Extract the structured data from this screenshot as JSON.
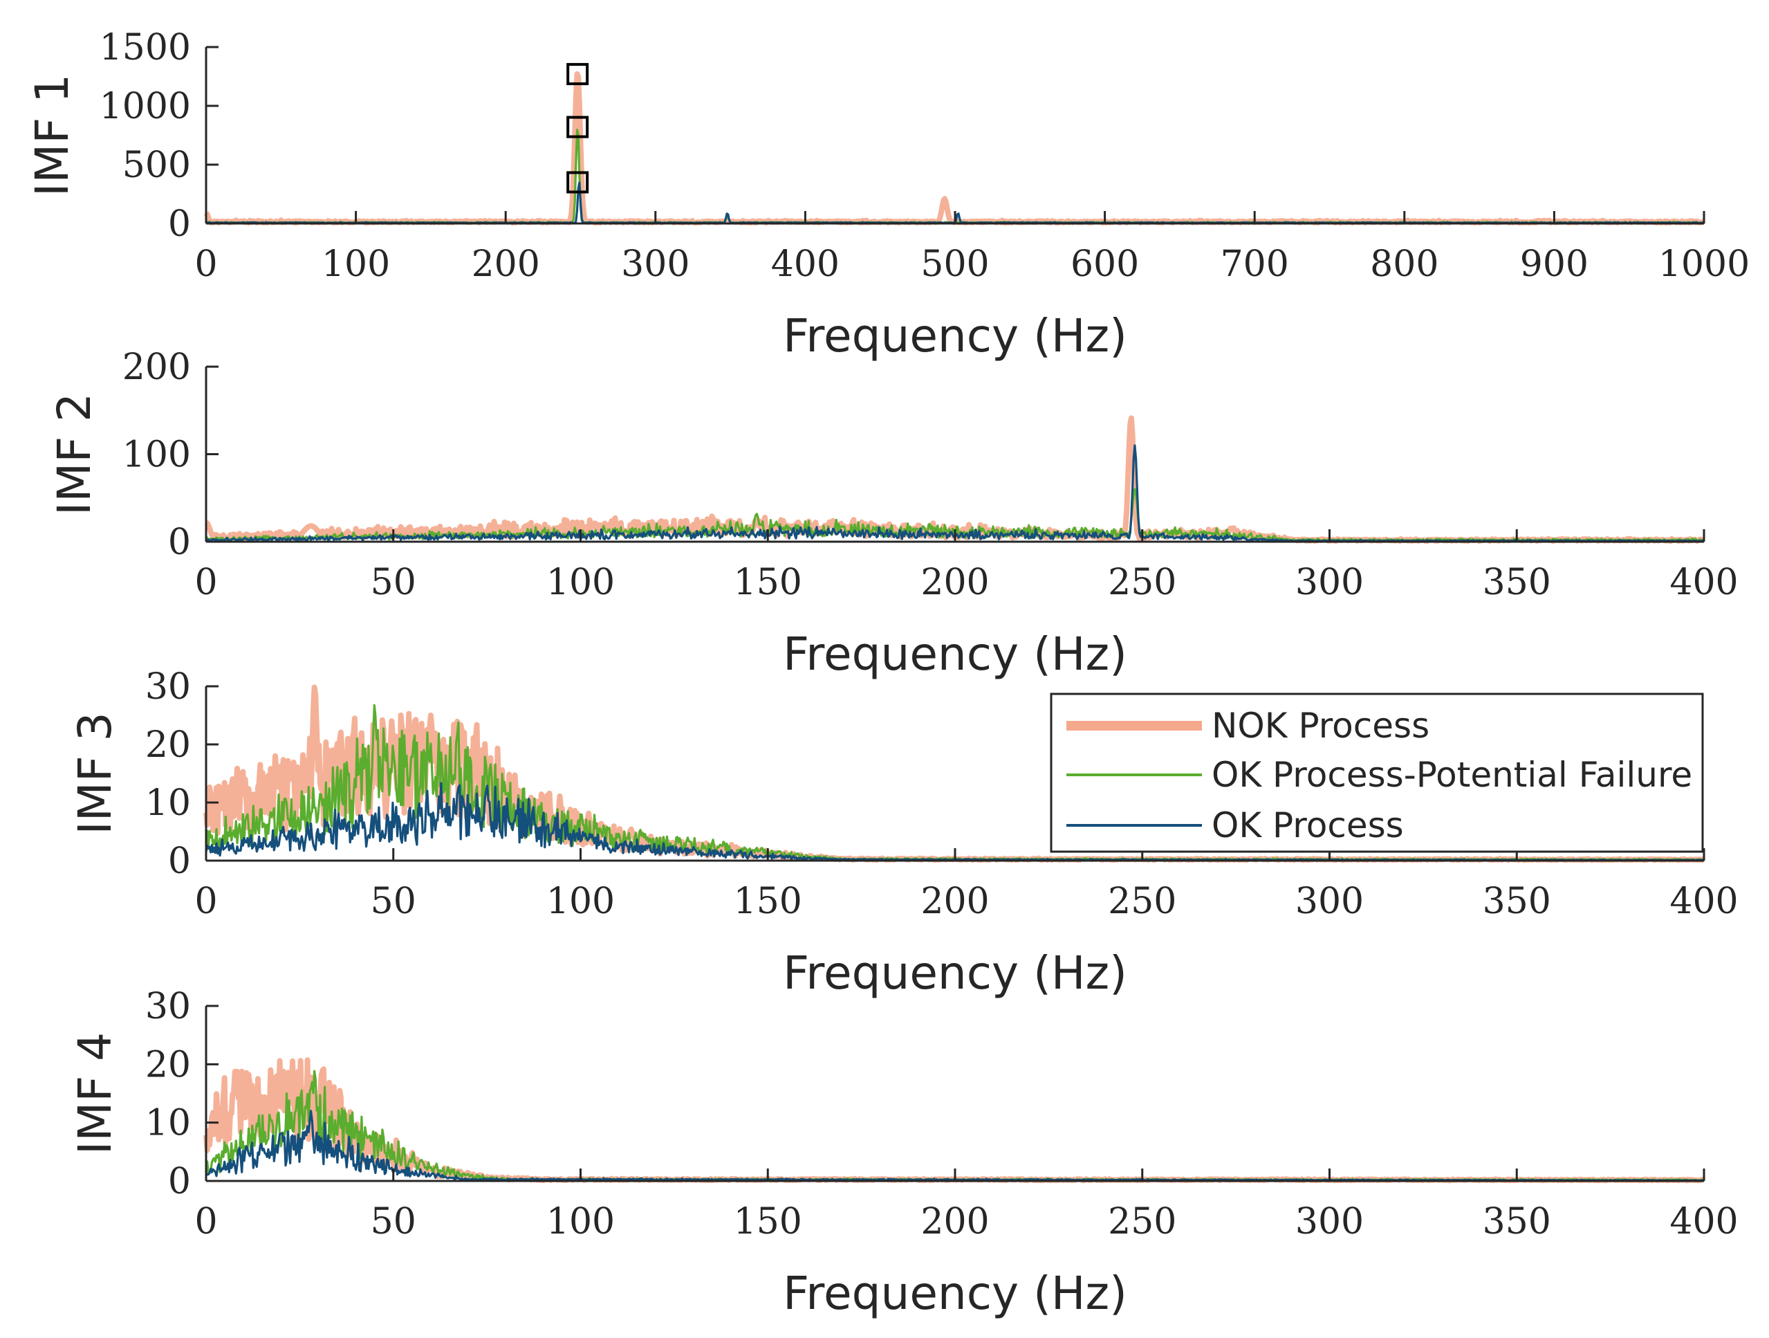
{
  "chart_data": [
    {
      "type": "line",
      "panel": "IMF 1",
      "ylabel": "IMF 1",
      "xlabel": "Frequency (Hz)",
      "xlim": [
        0,
        1000
      ],
      "ylim": [
        0,
        1500
      ],
      "xticks": [
        0,
        100,
        200,
        300,
        400,
        500,
        600,
        700,
        800,
        900,
        1000
      ],
      "yticks": [
        0,
        500,
        1000,
        1500
      ],
      "markers": [
        {
          "x": 248,
          "y": 1270,
          "symbol": "square"
        },
        {
          "x": 248,
          "y": 820,
          "symbol": "square"
        },
        {
          "x": 248,
          "y": 350,
          "symbol": "square"
        }
      ],
      "series": [
        {
          "name": "NOK Process",
          "color": "#f4a98c",
          "floor": 15,
          "noise": 10,
          "peaks": [
            {
              "x": 248,
              "y": 1290,
              "w": 2.5
            },
            {
              "x": 493,
              "y": 210,
              "w": 2.5
            },
            {
              "x": 0,
              "y": 90,
              "w": 2
            }
          ]
        },
        {
          "name": "OK Process-Potential Failure",
          "color": "#5aad2e",
          "floor": 8,
          "noise": 6,
          "peaks": [
            {
              "x": 248,
              "y": 830,
              "w": 1.5
            },
            {
              "x": 348,
              "y": 60,
              "w": 1.5
            }
          ]
        },
        {
          "name": "OK Process",
          "color": "#154f7c",
          "floor": 6,
          "noise": 5,
          "peaks": [
            {
              "x": 249,
              "y": 360,
              "w": 1.2
            },
            {
              "x": 348,
              "y": 90,
              "w": 1.2
            },
            {
              "x": 502,
              "y": 90,
              "w": 1.2
            }
          ]
        }
      ]
    },
    {
      "type": "line",
      "panel": "IMF 2",
      "ylabel": "IMF 2",
      "xlabel": "Frequency (Hz)",
      "xlim": [
        0,
        400
      ],
      "ylim": [
        0,
        200
      ],
      "xticks": [
        0,
        50,
        100,
        150,
        200,
        250,
        300,
        350,
        400
      ],
      "yticks": [
        0,
        100,
        200
      ],
      "series": [
        {
          "name": "NOK Process",
          "color": "#f4a98c",
          "envelope": [
            [
              0,
              6
            ],
            [
              100,
              16
            ],
            [
              150,
              18
            ],
            [
              200,
              12
            ],
            [
              240,
              8
            ],
            [
              275,
              10
            ],
            [
              290,
              2
            ],
            [
              400,
              2
            ]
          ],
          "noise": 12,
          "peaks": [
            {
              "x": 247,
              "y": 142,
              "w": 1
            },
            {
              "x": 0,
              "y": 22,
              "w": 1.5
            },
            {
              "x": 28,
              "y": 18,
              "w": 3
            },
            {
              "x": 274,
              "y": 14,
              "w": 1.5
            }
          ]
        },
        {
          "name": "OK Process-Potential Failure",
          "color": "#5aad2e",
          "envelope": [
            [
              0,
              3
            ],
            [
              100,
              10
            ],
            [
              150,
              16
            ],
            [
              200,
              12
            ],
            [
              240,
              10
            ],
            [
              270,
              9
            ],
            [
              290,
              2
            ],
            [
              400,
              2
            ]
          ],
          "noise": 12,
          "peaks": [
            {
              "x": 147,
              "y": 32,
              "w": 1
            },
            {
              "x": 248,
              "y": 60,
              "w": 1
            }
          ]
        },
        {
          "name": "OK Process",
          "color": "#154f7c",
          "envelope": [
            [
              0,
              2
            ],
            [
              100,
              7
            ],
            [
              150,
              10
            ],
            [
              200,
              8
            ],
            [
              240,
              7
            ],
            [
              270,
              5
            ],
            [
              290,
              1
            ],
            [
              400,
              1
            ]
          ],
          "noise": 8,
          "peaks": [
            {
              "x": 248,
              "y": 110,
              "w": 0.8
            }
          ]
        }
      ]
    },
    {
      "type": "line",
      "panel": "IMF 3",
      "ylabel": "IMF 3",
      "xlabel": "Frequency (Hz)",
      "xlim": [
        0,
        400
      ],
      "ylim": [
        0,
        30
      ],
      "xticks": [
        0,
        50,
        100,
        150,
        200,
        250,
        300,
        350,
        400
      ],
      "yticks": [
        0,
        10,
        20,
        30
      ],
      "legend_position": "right",
      "series": [
        {
          "name": "NOK Process",
          "color": "#f4a98c",
          "envelope": [
            [
              0,
              9
            ],
            [
              30,
              16
            ],
            [
              50,
              19
            ],
            [
              70,
              19
            ],
            [
              80,
              12
            ],
            [
              100,
              6
            ],
            [
              120,
              3
            ],
            [
              150,
              1.2
            ],
            [
              170,
              0.3
            ],
            [
              400,
              0.2
            ]
          ],
          "noise": 7,
          "peaks": [
            {
              "x": 29,
              "y": 30,
              "w": 1
            },
            {
              "x": 60,
              "y": 25,
              "w": 1
            },
            {
              "x": 72,
              "y": 21,
              "w": 1
            }
          ]
        },
        {
          "name": "OK Process-Potential Failure",
          "color": "#5aad2e",
          "envelope": [
            [
              0,
              4
            ],
            [
              30,
              10
            ],
            [
              45,
              17
            ],
            [
              60,
              17
            ],
            [
              75,
              14
            ],
            [
              90,
              8
            ],
            [
              110,
              4
            ],
            [
              130,
              3
            ],
            [
              150,
              1.5
            ],
            [
              170,
              0.3
            ],
            [
              400,
              0.2
            ]
          ],
          "noise": 7,
          "peaks": [
            {
              "x": 45,
              "y": 27,
              "w": 0.8
            },
            {
              "x": 67,
              "y": 22,
              "w": 0.8
            }
          ]
        },
        {
          "name": "OK Process",
          "color": "#154f7c",
          "envelope": [
            [
              0,
              2
            ],
            [
              30,
              5
            ],
            [
              50,
              7
            ],
            [
              70,
              9
            ],
            [
              85,
              7
            ],
            [
              100,
              4
            ],
            [
              120,
              2
            ],
            [
              150,
              0.8
            ],
            [
              170,
              0.2
            ],
            [
              400,
              0.1
            ]
          ],
          "noise": 5,
          "peaks": [
            {
              "x": 75,
              "y": 13,
              "w": 0.8
            }
          ]
        }
      ]
    },
    {
      "type": "line",
      "panel": "IMF 4",
      "ylabel": "IMF 4",
      "xlabel": "Frequency (Hz)",
      "xlim": [
        0,
        400
      ],
      "ylim": [
        0,
        30
      ],
      "xticks": [
        0,
        50,
        100,
        150,
        200,
        250,
        300,
        350,
        400
      ],
      "yticks": [
        0,
        10,
        20,
        30
      ],
      "series": [
        {
          "name": "NOK Process",
          "color": "#f4a98c",
          "envelope": [
            [
              0,
              7
            ],
            [
              5,
              14
            ],
            [
              15,
              15
            ],
            [
              25,
              17
            ],
            [
              32,
              16
            ],
            [
              40,
              8
            ],
            [
              50,
              5
            ],
            [
              60,
              2
            ],
            [
              75,
              0.6
            ],
            [
              90,
              0.3
            ],
            [
              400,
              0.2
            ]
          ],
          "noise": 5,
          "peaks": [
            {
              "x": 22,
              "y": 19,
              "w": 1
            },
            {
              "x": 31,
              "y": 19,
              "w": 1
            }
          ]
        },
        {
          "name": "OK Process-Potential Failure",
          "color": "#5aad2e",
          "envelope": [
            [
              0,
              2
            ],
            [
              10,
              7
            ],
            [
              20,
              12
            ],
            [
              30,
              13
            ],
            [
              40,
              8
            ],
            [
              50,
              5
            ],
            [
              60,
              2.5
            ],
            [
              70,
              1
            ],
            [
              80,
              0.3
            ],
            [
              400,
              0.2
            ]
          ],
          "noise": 5,
          "peaks": [
            {
              "x": 29,
              "y": 19,
              "w": 0.8
            }
          ]
        },
        {
          "name": "OK Process",
          "color": "#154f7c",
          "envelope": [
            [
              0,
              1
            ],
            [
              10,
              4
            ],
            [
              20,
              6
            ],
            [
              30,
              7
            ],
            [
              40,
              4
            ],
            [
              50,
              2.5
            ],
            [
              60,
              1
            ],
            [
              70,
              0.3
            ],
            [
              400,
              0.1
            ]
          ],
          "noise": 4,
          "peaks": [
            {
              "x": 28,
              "y": 12,
              "w": 0.8
            }
          ]
        }
      ]
    }
  ],
  "legend": {
    "entries": [
      "NOK Process",
      "OK Process-Potential Failure",
      "OK Process"
    ]
  }
}
